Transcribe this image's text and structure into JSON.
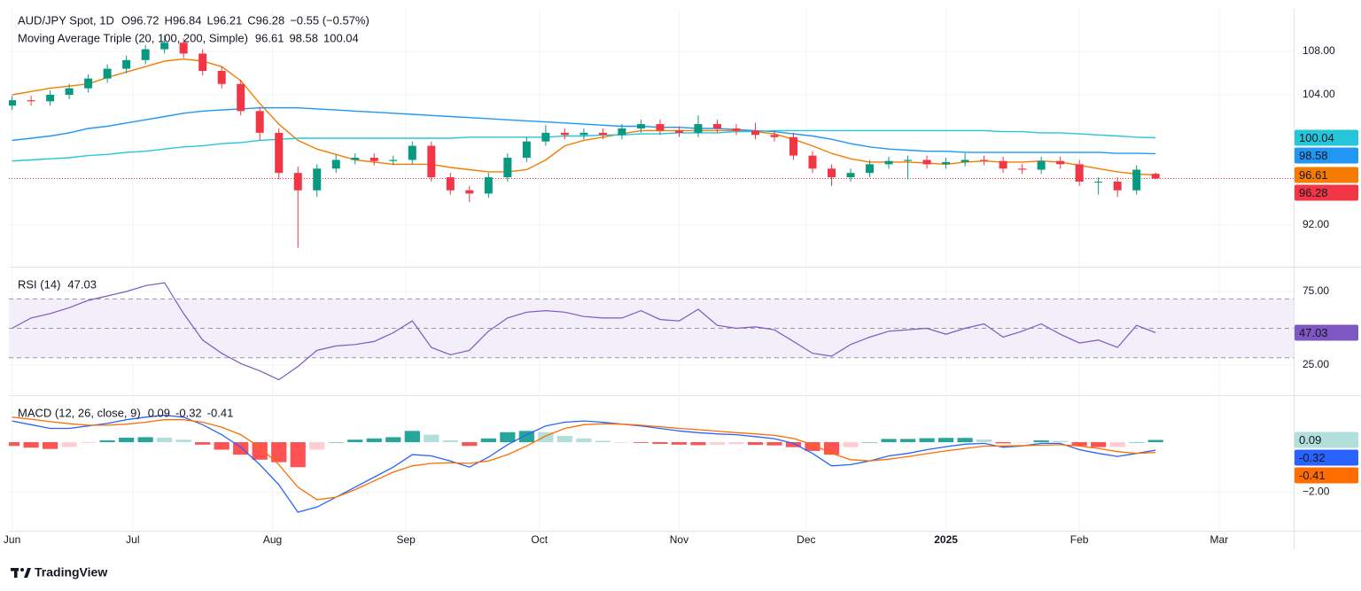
{
  "source": "TradingView",
  "chart_data": [
    {
      "type": "candlestick",
      "title": "AUD/JPY Spot, 1D",
      "ohlc_labels": [
        "O",
        "H",
        "L",
        "C"
      ],
      "change": "−0.55 (−0.57%)",
      "overlay_title": "Moving Average Triple (20, 100, 200, Simple)",
      "colors": {
        "up": "#089981",
        "down": "#f23645"
      },
      "x": [
        0,
        3,
        6,
        9,
        12,
        15,
        18,
        21,
        24,
        27,
        30,
        33,
        36,
        39,
        42,
        45,
        48,
        51,
        54,
        57,
        60,
        63,
        66,
        69,
        72,
        75,
        78,
        81,
        84,
        87,
        90,
        93,
        96,
        99,
        102,
        105,
        108,
        111,
        114,
        117,
        120,
        123,
        126,
        129,
        132,
        135,
        138,
        141,
        144,
        147,
        150,
        153,
        156,
        159,
        162,
        165,
        168,
        171,
        174,
        177,
        180
      ],
      "open": [
        103.0,
        103.5,
        103.4,
        104.0,
        104.6,
        105.5,
        106.4,
        107.2,
        108.2,
        108.8,
        107.8,
        106.2,
        105.0,
        102.5,
        100.5,
        96.8,
        95.2,
        97.2,
        98.0,
        98.2,
        97.9,
        98.0,
        99.3,
        96.4,
        95.2,
        94.9,
        96.4,
        98.2,
        99.7,
        100.5,
        100.3,
        100.5,
        100.3,
        100.9,
        101.3,
        100.7,
        100.5,
        101.3,
        100.9,
        100.7,
        100.3,
        100.1,
        98.4,
        97.2,
        96.4,
        96.8,
        97.6,
        97.9,
        98.0,
        97.6,
        97.8,
        98.0,
        97.9,
        97.2,
        97.1,
        97.9,
        97.6,
        96.0,
        96.0,
        95.2,
        96.72
      ],
      "high": [
        103.9,
        103.9,
        104.4,
        105.0,
        105.9,
        106.8,
        107.6,
        108.6,
        109.5,
        109.2,
        108.2,
        106.6,
        105.4,
        102.9,
        100.9,
        97.4,
        97.6,
        98.5,
        98.6,
        98.6,
        98.4,
        99.7,
        99.7,
        96.8,
        95.6,
        96.8,
        98.6,
        100.1,
        101.2,
        100.9,
        100.9,
        100.9,
        101.3,
        101.7,
        101.7,
        101.1,
        102.1,
        101.7,
        101.3,
        101.4,
        100.7,
        100.5,
        98.8,
        97.6,
        97.2,
        98.0,
        98.3,
        98.4,
        98.4,
        98.2,
        98.6,
        98.4,
        98.3,
        97.6,
        98.3,
        98.3,
        98.0,
        96.4,
        96.4,
        97.5,
        96.84
      ],
      "low": [
        102.6,
        103.0,
        103.0,
        103.6,
        104.2,
        105.1,
        106.0,
        106.8,
        107.8,
        107.4,
        105.8,
        104.6,
        102.1,
        99.8,
        96.2,
        89.9,
        94.6,
        96.8,
        97.6,
        97.5,
        97.5,
        97.6,
        96.0,
        94.8,
        94.1,
        94.5,
        96.0,
        97.8,
        99.3,
        99.9,
        99.9,
        99.9,
        99.9,
        100.5,
        100.3,
        100.1,
        100.1,
        100.5,
        100.3,
        99.9,
        99.7,
        98.0,
        96.8,
        95.6,
        96.0,
        96.4,
        97.2,
        96.2,
        97.2,
        97.2,
        97.4,
        97.5,
        96.8,
        96.7,
        96.7,
        97.2,
        95.6,
        94.8,
        94.6,
        94.8,
        96.21
      ],
      "close": [
        103.5,
        103.4,
        104.0,
        104.6,
        105.5,
        106.4,
        107.2,
        108.2,
        108.8,
        107.8,
        106.2,
        105.0,
        102.5,
        100.5,
        96.8,
        95.2,
        97.2,
        98.0,
        98.2,
        97.9,
        98.0,
        99.3,
        96.4,
        95.2,
        94.9,
        96.4,
        98.2,
        99.7,
        100.5,
        100.3,
        100.5,
        100.3,
        100.9,
        101.3,
        100.7,
        100.5,
        101.3,
        100.9,
        100.7,
        100.3,
        100.1,
        98.4,
        97.2,
        96.4,
        96.8,
        97.6,
        97.9,
        98.0,
        97.6,
        97.8,
        98.0,
        97.9,
        97.2,
        97.1,
        97.9,
        97.6,
        96.0,
        96.0,
        95.2,
        97.1,
        96.28
      ],
      "series": [
        {
          "color": "#f57c00",
          "values": [
            104.0,
            104.3,
            104.6,
            104.8,
            105.0,
            105.6,
            106.1,
            106.6,
            107.1,
            107.3,
            107.1,
            106.6,
            105.3,
            103.2,
            101.3,
            99.8,
            99.0,
            98.5,
            98.0,
            97.8,
            97.6,
            97.6,
            97.6,
            97.3,
            97.1,
            96.9,
            96.9,
            97.1,
            98.0,
            99.3,
            99.8,
            100.1,
            100.4,
            100.7,
            100.7,
            100.7,
            100.7,
            100.7,
            100.7,
            100.6,
            100.4,
            99.9,
            99.3,
            98.6,
            98.1,
            97.8,
            97.8,
            97.8,
            97.7,
            97.6,
            97.8,
            97.9,
            97.8,
            97.8,
            97.9,
            97.8,
            97.5,
            97.2,
            96.9,
            96.7,
            96.61
          ]
        },
        {
          "color": "#2196f3",
          "values": [
            99.8,
            100.0,
            100.2,
            100.5,
            100.9,
            101.1,
            101.4,
            101.7,
            102.0,
            102.3,
            102.5,
            102.6,
            102.7,
            102.8,
            102.8,
            102.8,
            102.7,
            102.6,
            102.5,
            102.4,
            102.3,
            102.2,
            102.1,
            102.0,
            101.9,
            101.8,
            101.7,
            101.6,
            101.5,
            101.4,
            101.3,
            101.2,
            101.1,
            101.1,
            101.0,
            101.0,
            100.9,
            100.9,
            100.8,
            100.7,
            100.6,
            100.4,
            100.2,
            99.9,
            99.5,
            99.2,
            99.0,
            98.9,
            98.8,
            98.8,
            98.7,
            98.7,
            98.7,
            98.7,
            98.7,
            98.7,
            98.7,
            98.7,
            98.6,
            98.6,
            98.58
          ]
        },
        {
          "color": "#26c6da",
          "values": [
            97.9,
            98.0,
            98.1,
            98.2,
            98.4,
            98.5,
            98.7,
            98.8,
            99.0,
            99.2,
            99.3,
            99.5,
            99.6,
            99.8,
            99.9,
            100.0,
            100.0,
            100.0,
            100.0,
            100.0,
            100.0,
            100.0,
            100.0,
            100.0,
            100.1,
            100.1,
            100.1,
            100.1,
            100.1,
            100.2,
            100.2,
            100.3,
            100.3,
            100.4,
            100.4,
            100.5,
            100.5,
            100.5,
            100.6,
            100.6,
            100.7,
            100.7,
            100.7,
            100.7,
            100.7,
            100.7,
            100.7,
            100.7,
            100.7,
            100.7,
            100.7,
            100.7,
            100.6,
            100.6,
            100.5,
            100.5,
            100.4,
            100.3,
            100.2,
            100.1,
            100.04
          ]
        }
      ],
      "ylim": [
        88.24,
        111.92
      ],
      "yticks": [
        {
          "value": 92,
          "label": "92.00"
        },
        {
          "value": 104,
          "label": "104.00"
        },
        {
          "value": 108,
          "label": "108.00"
        }
      ],
      "xlim": [
        -0.5,
        201.73
      ],
      "xticks": [
        {
          "value": 0,
          "label": "Jun"
        },
        {
          "value": 19,
          "label": "Jul"
        },
        {
          "value": 41,
          "label": "Aug"
        },
        {
          "value": 62,
          "label": "Sep"
        },
        {
          "value": 83,
          "label": "Oct"
        },
        {
          "value": 105,
          "label": "Nov"
        },
        {
          "value": 125,
          "label": "Dec"
        },
        {
          "value": 147,
          "label": "2025"
        },
        {
          "value": 168,
          "label": "Feb"
        },
        {
          "value": 190,
          "label": "Mar"
        }
      ],
      "grid": true
    },
    {
      "type": "line",
      "title": "RSI (14)",
      "series": [
        {
          "color": "#7e57c2",
          "values": [
            50,
            57,
            60,
            64,
            69,
            72,
            75,
            79,
            81,
            60,
            42,
            33,
            26,
            21,
            15,
            24,
            35,
            38,
            39,
            41,
            47,
            55,
            37,
            32,
            35,
            48,
            57,
            61,
            62,
            61,
            58,
            57,
            57,
            62,
            56,
            55,
            63,
            52,
            50,
            51,
            49,
            41,
            33,
            31,
            39,
            44,
            48,
            49,
            50,
            46,
            50,
            53,
            44,
            48,
            53,
            46,
            40,
            42,
            37,
            52,
            47.03
          ]
        }
      ],
      "levels": [
        70,
        50,
        30
      ],
      "band_color": "#f3effa",
      "ylim": [
        5.1,
        90.7
      ],
      "yticks": [
        {
          "value": 25,
          "label": "25.00"
        },
        {
          "value": 75,
          "label": "75.00"
        }
      ],
      "grid": true
    },
    {
      "type": "macd",
      "title": "MACD (12, 26, close, 9)",
      "histogram": {
        "colors": [
          "#26a69a",
          "#b2dfdb",
          "#ffcdd2",
          "#ff5252"
        ],
        "values": [
          -0.15,
          -0.22,
          -0.27,
          -0.19,
          -0.03,
          0.07,
          0.18,
          0.2,
          0.18,
          0.1,
          -0.1,
          -0.3,
          -0.5,
          -0.7,
          -0.8,
          -1.0,
          -0.3,
          0,
          0.1,
          0.15,
          0.2,
          0.45,
          0.3,
          0.07,
          -0.15,
          0.15,
          0.4,
          0.45,
          0.4,
          0.25,
          0.15,
          0.06,
          0,
          -0.03,
          -0.07,
          -0.1,
          -0.12,
          -0.11,
          -0.08,
          -0.11,
          -0.13,
          -0.2,
          -0.35,
          -0.5,
          -0.2,
          0,
          0.13,
          0.13,
          0.16,
          0.17,
          0.17,
          0.11,
          -0.05,
          -0.01,
          0.07,
          0.05,
          -0.15,
          -0.2,
          -0.19,
          0,
          0.09
        ]
      },
      "series": [
        {
          "color": "#2962ff",
          "values": [
            0.85,
            0.7,
            0.55,
            0.55,
            0.65,
            0.75,
            0.9,
            1.0,
            1.08,
            1.0,
            0.7,
            0.3,
            -0.2,
            -0.9,
            -1.7,
            -2.8,
            -2.6,
            -2.2,
            -1.8,
            -1.4,
            -1.0,
            -0.5,
            -0.55,
            -0.75,
            -1.0,
            -0.6,
            -0.1,
            0.3,
            0.65,
            0.8,
            0.85,
            0.8,
            0.72,
            0.65,
            0.55,
            0.45,
            0.38,
            0.33,
            0.3,
            0.22,
            0.14,
            -0.05,
            -0.45,
            -0.95,
            -0.9,
            -0.75,
            -0.55,
            -0.45,
            -0.3,
            -0.18,
            -0.08,
            -0.05,
            -0.2,
            -0.15,
            -0.05,
            -0.05,
            -0.3,
            -0.45,
            -0.57,
            -0.45,
            -0.32
          ]
        },
        {
          "color": "#ff6d00",
          "values": [
            1.0,
            0.92,
            0.82,
            0.74,
            0.68,
            0.68,
            0.72,
            0.8,
            0.9,
            0.9,
            0.8,
            0.6,
            0.3,
            -0.2,
            -0.9,
            -1.8,
            -2.3,
            -2.2,
            -1.9,
            -1.55,
            -1.2,
            -0.95,
            -0.85,
            -0.82,
            -0.85,
            -0.75,
            -0.5,
            -0.15,
            0.25,
            0.55,
            0.7,
            0.74,
            0.72,
            0.68,
            0.62,
            0.55,
            0.5,
            0.44,
            0.38,
            0.33,
            0.27,
            0.15,
            -0.1,
            -0.45,
            -0.7,
            -0.75,
            -0.68,
            -0.58,
            -0.46,
            -0.35,
            -0.25,
            -0.16,
            -0.15,
            -0.14,
            -0.12,
            -0.1,
            -0.15,
            -0.25,
            -0.38,
            -0.45,
            -0.41
          ]
        }
      ],
      "ylim": [
        -3.51,
        1.81
      ],
      "yticks": [
        {
          "value": -2,
          "label": "−2.00"
        }
      ],
      "grid": true
    }
  ]
}
